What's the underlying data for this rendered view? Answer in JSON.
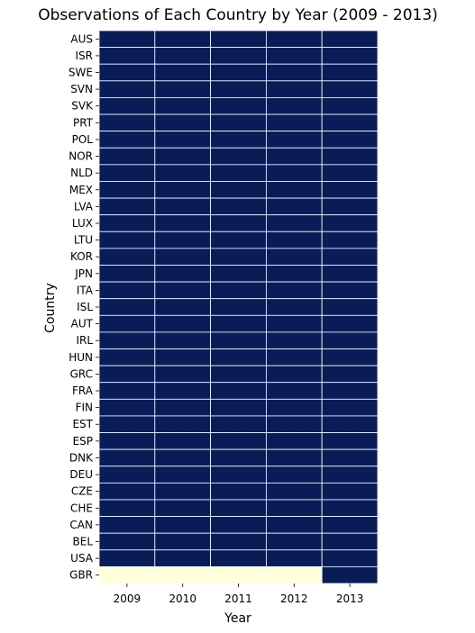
{
  "chart_data": {
    "type": "heatmap",
    "title": "Observations of Each Country by Year (2009 - 2013)",
    "xlabel": "Year",
    "ylabel": "Country",
    "x": [
      "2009",
      "2010",
      "2011",
      "2012",
      "2013"
    ],
    "y": [
      "AUS",
      "ISR",
      "SWE",
      "SVN",
      "SVK",
      "PRT",
      "POL",
      "NOR",
      "NLD",
      "MEX",
      "LVA",
      "LUX",
      "LTU",
      "KOR",
      "JPN",
      "ITA",
      "ISL",
      "AUT",
      "IRL",
      "HUN",
      "GRC",
      "FRA",
      "FIN",
      "EST",
      "ESP",
      "DNK",
      "DEU",
      "CZE",
      "CHE",
      "CAN",
      "BEL",
      "USA",
      "GBR"
    ],
    "values": [
      [
        1,
        1,
        1,
        1,
        1
      ],
      [
        1,
        1,
        1,
        1,
        1
      ],
      [
        1,
        1,
        1,
        1,
        1
      ],
      [
        1,
        1,
        1,
        1,
        1
      ],
      [
        1,
        1,
        1,
        1,
        1
      ],
      [
        1,
        1,
        1,
        1,
        1
      ],
      [
        1,
        1,
        1,
        1,
        1
      ],
      [
        1,
        1,
        1,
        1,
        1
      ],
      [
        1,
        1,
        1,
        1,
        1
      ],
      [
        1,
        1,
        1,
        1,
        1
      ],
      [
        1,
        1,
        1,
        1,
        1
      ],
      [
        1,
        1,
        1,
        1,
        1
      ],
      [
        1,
        1,
        1,
        1,
        1
      ],
      [
        1,
        1,
        1,
        1,
        1
      ],
      [
        1,
        1,
        1,
        1,
        1
      ],
      [
        1,
        1,
        1,
        1,
        1
      ],
      [
        1,
        1,
        1,
        1,
        1
      ],
      [
        1,
        1,
        1,
        1,
        1
      ],
      [
        1,
        1,
        1,
        1,
        1
      ],
      [
        1,
        1,
        1,
        1,
        1
      ],
      [
        1,
        1,
        1,
        1,
        1
      ],
      [
        1,
        1,
        1,
        1,
        1
      ],
      [
        1,
        1,
        1,
        1,
        1
      ],
      [
        1,
        1,
        1,
        1,
        1
      ],
      [
        1,
        1,
        1,
        1,
        1
      ],
      [
        1,
        1,
        1,
        1,
        1
      ],
      [
        1,
        1,
        1,
        1,
        1
      ],
      [
        1,
        1,
        1,
        1,
        1
      ],
      [
        1,
        1,
        1,
        1,
        1
      ],
      [
        1,
        1,
        1,
        1,
        1
      ],
      [
        1,
        1,
        1,
        1,
        1
      ],
      [
        1,
        1,
        1,
        1,
        1
      ],
      [
        0,
        0,
        0,
        0,
        1
      ]
    ],
    "colorbar": false,
    "colors": {
      "high": "#081d58",
      "low": "#ffffd9",
      "cell_border": "#ffffff"
    }
  }
}
